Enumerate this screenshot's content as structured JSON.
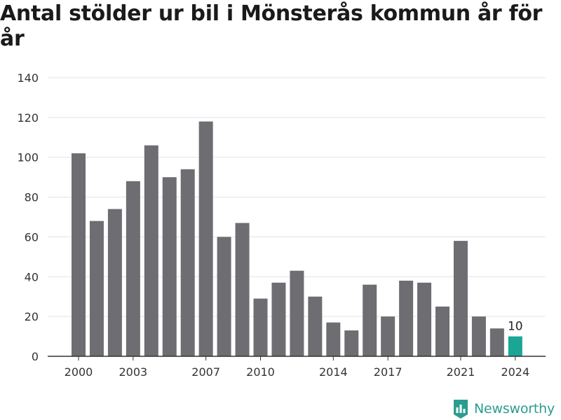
{
  "chart_data": {
    "type": "bar",
    "title": "Antal stölder ur bil i Mönsterås kommun år för år",
    "categories": [
      2000,
      2001,
      2002,
      2003,
      2004,
      2005,
      2006,
      2007,
      2008,
      2009,
      2010,
      2011,
      2012,
      2013,
      2014,
      2015,
      2016,
      2017,
      2018,
      2019,
      2020,
      2021,
      2022,
      2023,
      2024
    ],
    "values": [
      102,
      68,
      74,
      88,
      106,
      90,
      94,
      118,
      60,
      67,
      29,
      37,
      43,
      30,
      17,
      13,
      36,
      20,
      38,
      37,
      25,
      58,
      20,
      14,
      10
    ],
    "x_tick_labels": [
      "2000",
      "2003",
      "2007",
      "2010",
      "2014",
      "2017",
      "2021",
      "2024"
    ],
    "y_ticks": [
      0,
      20,
      40,
      60,
      80,
      100,
      120,
      140
    ],
    "ylim": [
      0,
      140
    ],
    "grid": true,
    "highlight": {
      "category": 2024,
      "label": "10"
    },
    "colors": {
      "bar": "#6e6d72",
      "highlight": "#1aa594",
      "grid": "#e3e3e3"
    }
  },
  "brand": {
    "name": "Newsworthy",
    "icon": "bar-chart-logo-icon",
    "color": "#2a9d8f"
  }
}
